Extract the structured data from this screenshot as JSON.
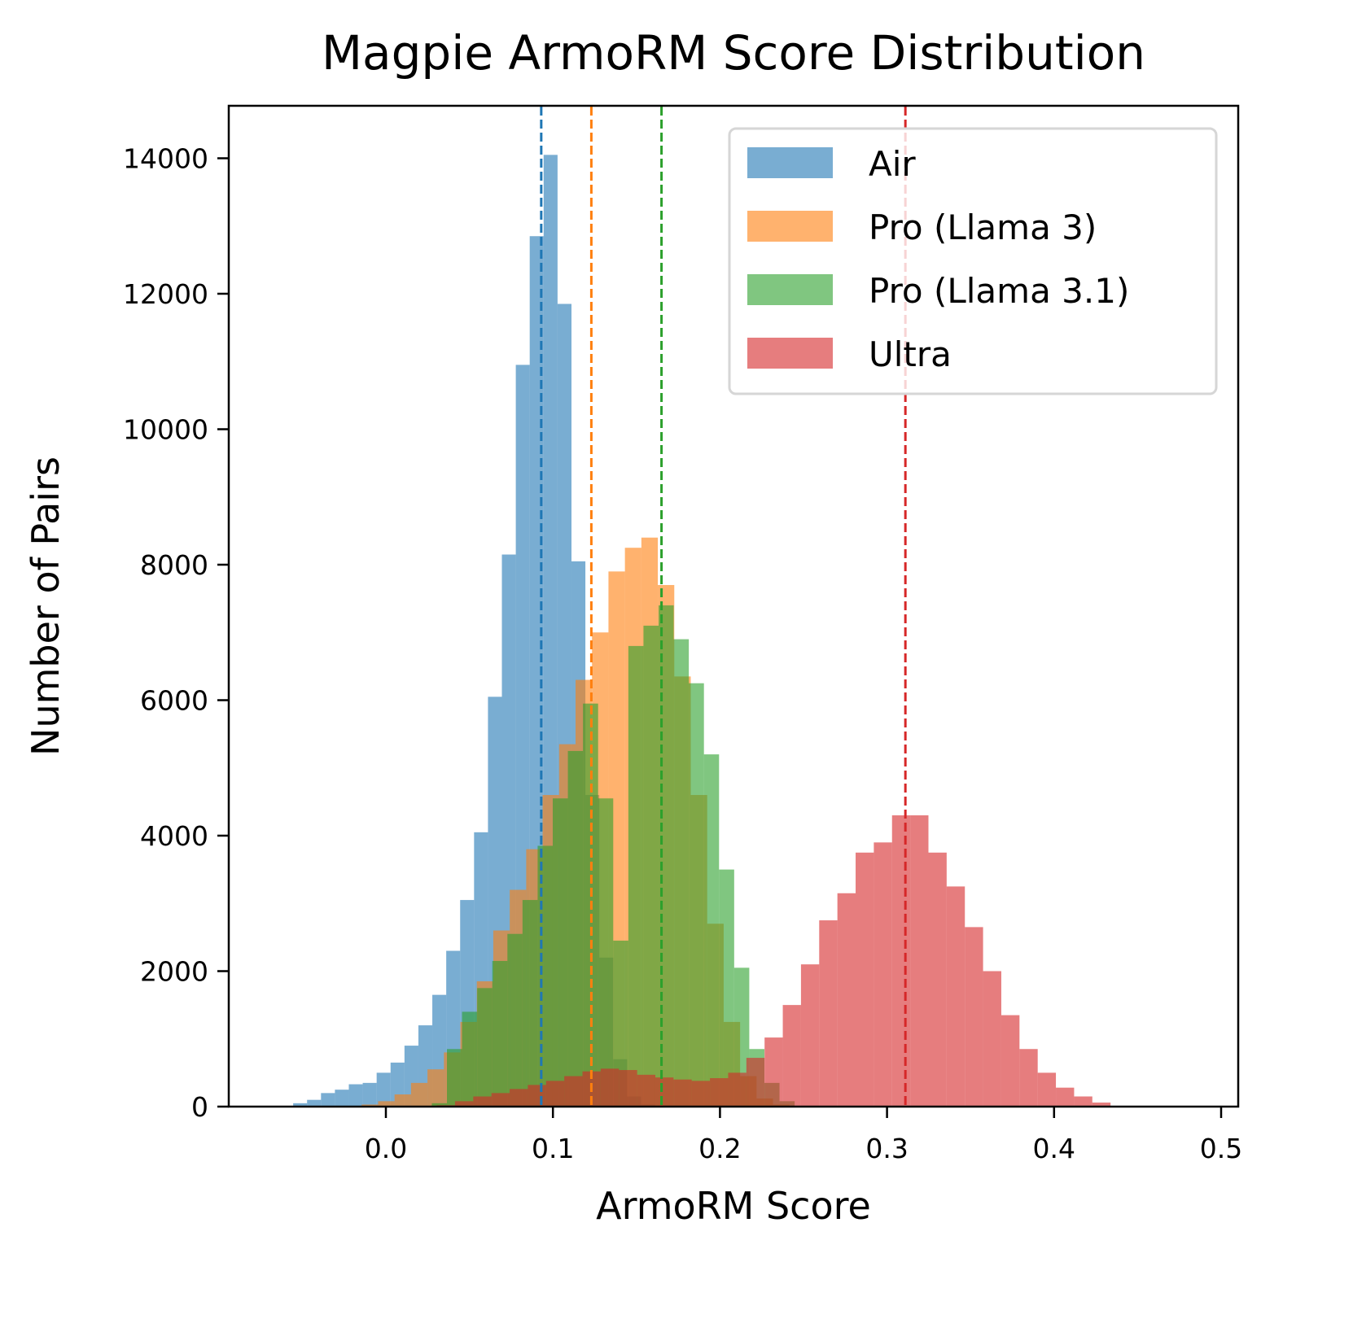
{
  "chart_data": {
    "type": "histogram",
    "title": "Magpie ArmoRM Score Distribution",
    "xlabel": "ArmoRM Score",
    "ylabel": "Number of Pairs",
    "xlim": [
      -0.097,
      0.505
    ],
    "ylim": [
      0,
      14750
    ],
    "xticks": [
      0.0,
      0.1,
      0.2,
      0.3,
      0.4,
      0.5
    ],
    "xtick_labels": [
      "0.0",
      "0.1",
      "0.2",
      "0.3",
      "0.4",
      "0.5"
    ],
    "yticks": [
      0,
      2000,
      4000,
      6000,
      8000,
      10000,
      12000,
      14000
    ],
    "ytick_labels": [
      "0",
      "2000",
      "4000",
      "6000",
      "8000",
      "10000",
      "12000",
      "14000"
    ],
    "grid": false,
    "legend_position": "upper right",
    "alpha": 0.6,
    "series": [
      {
        "name": "Air",
        "color": "#1f77b4",
        "bin_start": -0.0555,
        "bin_width": 0.00833,
        "counts": [
          50,
          100,
          200,
          250,
          330,
          350,
          500,
          650,
          900,
          1200,
          1650,
          2300,
          3050,
          4050,
          6050,
          8150,
          10950,
          12850,
          14050,
          11850,
          8050,
          4600,
          2200,
          700,
          150,
          30
        ],
        "mean": 0.093
      },
      {
        "name": "Pro (Llama 3)",
        "color": "#ff7f0e",
        "bin_start": -0.0145,
        "bin_width": 0.00985,
        "counts": [
          30,
          80,
          180,
          350,
          550,
          800,
          1250,
          1850,
          2600,
          3200,
          3800,
          4600,
          5350,
          6300,
          7000,
          7900,
          8250,
          8400,
          7700,
          6350,
          4600,
          2700,
          1250,
          450,
          120,
          30
        ],
        "mean": 0.123
      },
      {
        "name": "Pro (Llama 3.1)",
        "color": "#2ca02c",
        "bin_start": 0.0275,
        "bin_width": 0.00905,
        "counts": [
          50,
          850,
          1400,
          1750,
          2150,
          2550,
          3050,
          3850,
          4550,
          5250,
          5950,
          4550,
          2450,
          6800,
          7100,
          7400,
          6900,
          6250,
          5200,
          3500,
          2050,
          850,
          350,
          80
        ],
        "mean": 0.165
      },
      {
        "name": "Ultra",
        "color": "#d62728",
        "bin_start": 0.0305,
        "bin_width": 0.0109,
        "counts": [
          20,
          80,
          150,
          200,
          260,
          320,
          380,
          450,
          520,
          560,
          540,
          470,
          430,
          400,
          380,
          420,
          500,
          720,
          1020,
          1500,
          2100,
          2750,
          3150,
          3750,
          3900,
          4300,
          4300,
          3750,
          3250,
          2650,
          2000,
          1350,
          850,
          500,
          280,
          150,
          60
        ],
        "mean": 0.311
      }
    ]
  },
  "legend": {
    "items": [
      {
        "label": "Air",
        "color": "#1f77b4"
      },
      {
        "label": "Pro (Llama 3)",
        "color": "#ff7f0e"
      },
      {
        "label": "Pro (Llama 3.1)",
        "color": "#2ca02c"
      },
      {
        "label": "Ultra",
        "color": "#d62728"
      }
    ]
  }
}
